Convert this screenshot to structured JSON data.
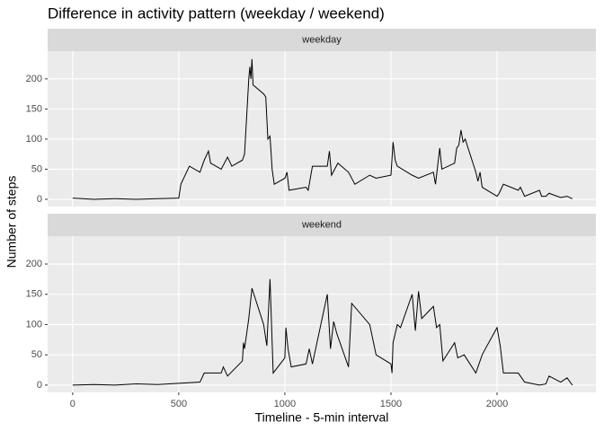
{
  "chart_data": {
    "type": "line",
    "title": "Difference in activity pattern (weekday / weekend)",
    "xlabel": "Timeline - 5-min interval",
    "ylabel": "Number of steps",
    "xlim": [
      -118,
      2466
    ],
    "ylim": [
      -12,
      246
    ],
    "xticks": [
      0,
      500,
      1000,
      1500,
      2000
    ],
    "yticks": [
      0,
      50,
      100,
      150,
      200
    ],
    "grid": true,
    "color": "#000000",
    "panels": [
      {
        "label": "weekday",
        "x": [
          0,
          100,
          200,
          300,
          400,
          500,
          510,
          550,
          600,
          620,
          640,
          650,
          700,
          730,
          750,
          800,
          810,
          830,
          835,
          840,
          845,
          850,
          900,
          910,
          920,
          930,
          940,
          950,
          1000,
          1010,
          1020,
          1100,
          1110,
          1120,
          1130,
          1200,
          1210,
          1220,
          1250,
          1300,
          1330,
          1400,
          1430,
          1500,
          1510,
          1520,
          1530,
          1600,
          1630,
          1700,
          1710,
          1720,
          1730,
          1740,
          1800,
          1810,
          1820,
          1830,
          1840,
          1850,
          1900,
          1910,
          1920,
          1930,
          2000,
          2010,
          2030,
          2100,
          2110,
          2130,
          2200,
          2210,
          2230,
          2245,
          2300,
          2330,
          2355
        ],
        "values": [
          2,
          0,
          1,
          0,
          1,
          2,
          25,
          55,
          45,
          65,
          80,
          60,
          50,
          70,
          55,
          65,
          75,
          200,
          220,
          200,
          233,
          190,
          175,
          170,
          100,
          105,
          50,
          25,
          35,
          45,
          15,
          20,
          15,
          35,
          55,
          55,
          80,
          40,
          60,
          45,
          25,
          40,
          35,
          40,
          95,
          65,
          55,
          40,
          35,
          45,
          25,
          55,
          85,
          50,
          60,
          85,
          90,
          115,
          95,
          100,
          45,
          30,
          45,
          20,
          5,
          10,
          25,
          15,
          20,
          5,
          15,
          5,
          5,
          10,
          3,
          5,
          1
        ]
      },
      {
        "label": "weekend",
        "x": [
          0,
          100,
          200,
          300,
          400,
          500,
          600,
          620,
          700,
          710,
          730,
          800,
          805,
          810,
          830,
          845,
          900,
          915,
          930,
          945,
          1000,
          1005,
          1015,
          1030,
          1100,
          1115,
          1130,
          1200,
          1215,
          1230,
          1245,
          1300,
          1315,
          1400,
          1430,
          1500,
          1505,
          1510,
          1530,
          1545,
          1600,
          1615,
          1630,
          1645,
          1700,
          1715,
          1730,
          1745,
          1800,
          1815,
          1845,
          1900,
          1930,
          1945,
          2000,
          2015,
          2030,
          2100,
          2130,
          2200,
          2230,
          2245,
          2300,
          2330,
          2355
        ],
        "values": [
          0,
          1,
          0,
          2,
          1,
          3,
          5,
          20,
          20,
          30,
          15,
          40,
          70,
          60,
          110,
          160,
          100,
          65,
          175,
          20,
          45,
          95,
          60,
          30,
          35,
          60,
          35,
          150,
          60,
          105,
          85,
          30,
          135,
          100,
          50,
          35,
          20,
          70,
          100,
          95,
          150,
          90,
          155,
          110,
          130,
          95,
          100,
          40,
          70,
          45,
          50,
          20,
          50,
          60,
          95,
          65,
          20,
          20,
          5,
          0,
          2,
          15,
          5,
          12,
          0
        ]
      }
    ]
  }
}
